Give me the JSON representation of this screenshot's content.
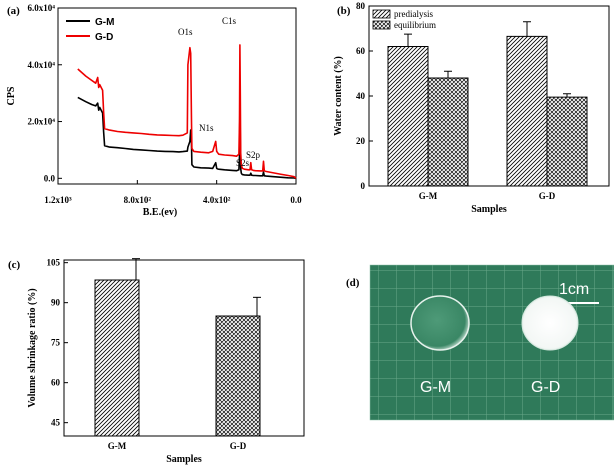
{
  "panels": {
    "a": {
      "label": "(a)",
      "peaks": [
        "O1s",
        "C1s",
        "N1s",
        "S2s",
        "S2p"
      ]
    },
    "b": {
      "label": "(b)"
    },
    "c": {
      "label": "(c)"
    },
    "d": {
      "label": "(d)",
      "scale_text": "1cm",
      "sample_labels": [
        "G-M",
        "G-D"
      ]
    }
  },
  "chart_data": [
    {
      "panel": "a",
      "type": "line",
      "xlabel": "B.E.(ev)",
      "ylabel": "CPS",
      "x_reversed": true,
      "xlim": [
        1200,
        0
      ],
      "ylim": [
        -2000,
        60000
      ],
      "x_ticks": [
        "1.2x10³",
        "8.0x10²",
        "4.0x10²",
        "0.0"
      ],
      "y_ticks": [
        "0.0",
        "2.0x10⁴",
        "4.0x10⁴",
        "6.0x10⁴"
      ],
      "legend": "top-left",
      "series": [
        {
          "name": "G-M",
          "color": "#000000",
          "x": [
            1100,
            1060,
            1030,
            1010,
            1000,
            995,
            990,
            975,
            970,
            965,
            940,
            900,
            860,
            820,
            780,
            740,
            700,
            660,
            620,
            590,
            570,
            548,
            545,
            535,
            531,
            527,
            525,
            515,
            480,
            440,
            420,
            405,
            400,
            395,
            390,
            360,
            320,
            300,
            288,
            285,
            283,
            281,
            279,
            276,
            273,
            270,
            260,
            240,
            232,
            228,
            224,
            215,
            205,
            180,
            168,
            164,
            160,
            150,
            120,
            80,
            40,
            10,
            0
          ],
          "y": [
            28500,
            27000,
            26000,
            25500,
            26500,
            24000,
            25000,
            23000,
            16500,
            11500,
            11000,
            10800,
            10500,
            10200,
            10000,
            9800,
            9600,
            9500,
            9400,
            9300,
            9400,
            9600,
            11000,
            13000,
            17000,
            12000,
            4800,
            4000,
            3700,
            3600,
            3500,
            5500,
            3500,
            3300,
            3200,
            3000,
            2800,
            2700,
            3000,
            8000,
            27000,
            14000,
            3500,
            1800,
            1500,
            1300,
            1200,
            1100,
            1100,
            1800,
            1100,
            1000,
            1000,
            900,
            900,
            2200,
            900,
            800,
            600,
            400,
            200,
            100,
            0
          ]
        },
        {
          "name": "G-D",
          "color": "#ee0000",
          "x": [
            1100,
            1060,
            1030,
            1010,
            1000,
            995,
            990,
            975,
            970,
            965,
            940,
            900,
            860,
            820,
            780,
            740,
            700,
            660,
            620,
            590,
            570,
            548,
            545,
            535,
            531,
            527,
            525,
            515,
            480,
            440,
            420,
            405,
            400,
            395,
            390,
            360,
            320,
            300,
            288,
            285,
            283,
            281,
            279,
            276,
            273,
            270,
            260,
            240,
            232,
            228,
            224,
            215,
            205,
            180,
            168,
            164,
            160,
            150,
            120,
            80,
            40,
            10,
            0
          ],
          "y": [
            38500,
            36000,
            34500,
            33500,
            35500,
            32000,
            33000,
            31000,
            23500,
            17500,
            17000,
            16500,
            16200,
            16000,
            15800,
            15500,
            15300,
            15200,
            15100,
            15000,
            15200,
            16000,
            40000,
            46000,
            44000,
            20000,
            10500,
            9500,
            9200,
            9000,
            9500,
            13000,
            9500,
            9000,
            8500,
            8200,
            8000,
            7800,
            8500,
            20000,
            47000,
            30000,
            9000,
            5000,
            4000,
            3500,
            3200,
            3000,
            3000,
            5500,
            3000,
            2800,
            2700,
            2600,
            2600,
            6000,
            2600,
            2400,
            2000,
            1500,
            1000,
            600,
            0
          ]
        }
      ]
    },
    {
      "panel": "b",
      "type": "bar",
      "xlabel": "Samples",
      "ylabel": "Water content (%)",
      "ylim": [
        0,
        80
      ],
      "y_ticks": [
        "0",
        "20",
        "40",
        "60",
        "80"
      ],
      "categories": [
        "G-M",
        "G-D"
      ],
      "legend": "top-left",
      "series": [
        {
          "name": "predialysis",
          "values": [
            62,
            66.5
          ],
          "errors": [
            5.5,
            6.5
          ]
        },
        {
          "name": "equilibrium",
          "values": [
            48,
            39.5
          ],
          "errors": [
            3,
            1.5
          ]
        }
      ]
    },
    {
      "panel": "c",
      "type": "bar",
      "xlabel": "Samples",
      "ylabel": "Volume shrinkage ratio (%)",
      "ylim": [
        40,
        106
      ],
      "y_ticks": [
        "45",
        "60",
        "75",
        "90",
        "105"
      ],
      "categories": [
        "G-M",
        "G-D"
      ],
      "values": [
        98.5,
        85
      ],
      "errors": [
        8,
        7
      ]
    }
  ]
}
